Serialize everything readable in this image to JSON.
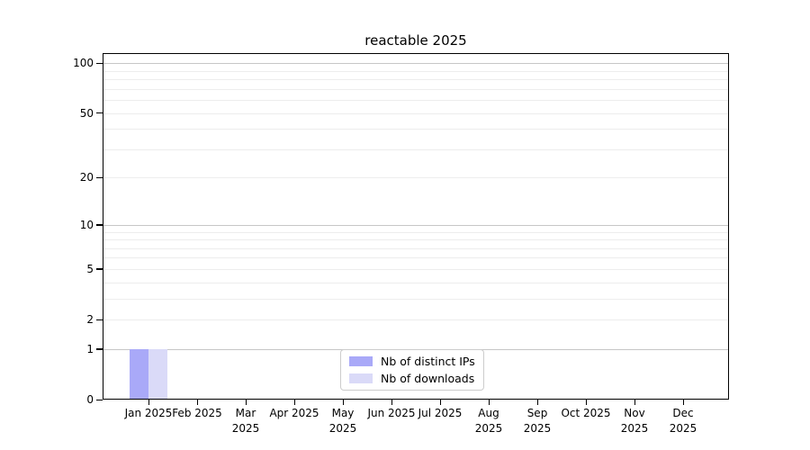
{
  "chart_data": {
    "type": "bar",
    "title": "reactable 2025",
    "categories": [
      "Jan 2025",
      "Feb 2025",
      "Mar 2025",
      "Apr 2025",
      "May 2025",
      "Jun 2025",
      "Jul 2025",
      "Aug 2025",
      "Sep 2025",
      "Oct 2025",
      "Nov 2025",
      "Dec 2025"
    ],
    "series": [
      {
        "name": "Nb of distinct IPs",
        "color": "#a9a9f8",
        "values": [
          1,
          0,
          0,
          0,
          0,
          0,
          0,
          0,
          0,
          0,
          0,
          0
        ]
      },
      {
        "name": "Nb of downloads",
        "color": "#dadaf8",
        "values": [
          1,
          0,
          0,
          0,
          0,
          0,
          0,
          0,
          0,
          0,
          0,
          0
        ]
      }
    ],
    "xlabel": "",
    "ylabel": "",
    "y_axis": {
      "scale": "log1p",
      "ticks": [
        0,
        1,
        2,
        5,
        10,
        20,
        50,
        100
      ],
      "major_gridlines": [
        1,
        10,
        100
      ],
      "minor_gridlines": [
        2,
        3,
        4,
        5,
        6,
        7,
        8,
        9,
        20,
        30,
        40,
        50,
        60,
        70,
        80,
        90
      ],
      "ylim": [
        0,
        115
      ]
    },
    "legend": {
      "position": "lower center"
    },
    "grid": true,
    "colors": {
      "major_grid": "#c6c6c6",
      "minor_grid": "#ededed",
      "axis": "#000000",
      "background": "#ffffff",
      "text": "#000000"
    }
  }
}
